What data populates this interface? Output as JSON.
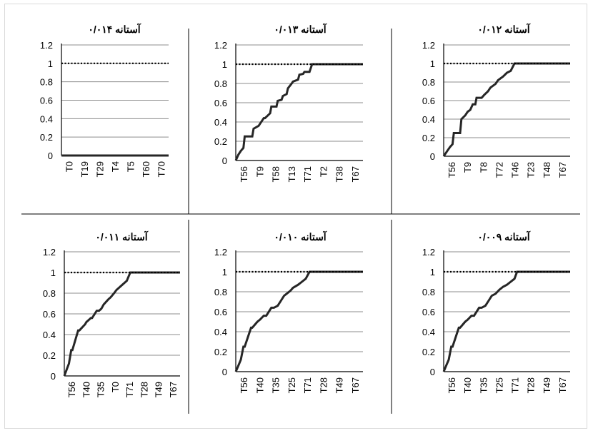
{
  "colors": {
    "grid": "#8c8c8c",
    "axis": "#000000",
    "series": "#262626",
    "threshold": "#000000",
    "divider": "#000000",
    "frame": "#d9d9d9"
  },
  "chart_data": [
    {
      "type": "line",
      "title": "آستانه ۰/۰۱۴",
      "ylim": [
        0,
        1.2
      ],
      "yticks": [
        "0",
        "0.2",
        "0.4",
        "0.6",
        "0.8",
        "1",
        "1.2"
      ],
      "categories": [
        "T0",
        "T19",
        "T29",
        "T4",
        "T5",
        "T60",
        "T70"
      ],
      "series": [
        {
          "style": "solid",
          "x": [
            0,
            1
          ],
          "y": [
            0,
            0
          ]
        },
        {
          "style": "dotted",
          "x": [
            0,
            1
          ],
          "y": [
            1,
            1
          ]
        }
      ]
    },
    {
      "type": "line",
      "title": "آستانه ۰/۰۱۳",
      "ylim": [
        0,
        1.2
      ],
      "yticks": [
        "0",
        "0.2",
        "0.4",
        "0.6",
        "0.8",
        "1",
        "1.2"
      ],
      "categories": [
        "T56",
        "T9",
        "T58",
        "T13",
        "T71",
        "T2",
        "T38",
        "T67"
      ],
      "series": [
        {
          "style": "solid",
          "x": [
            0,
            0.02,
            0.04,
            0.06,
            0.07,
            0.09,
            0.13,
            0.14,
            0.18,
            0.22,
            0.23,
            0.27,
            0.28,
            0.32,
            0.33,
            0.36,
            0.37,
            0.4,
            0.41,
            0.44,
            0.45,
            0.49,
            0.5,
            0.53,
            0.54,
            0.58,
            0.6,
            0.63,
            0.65,
            0.68,
            0.7,
            0.72,
            1
          ],
          "y": [
            0,
            0.06,
            0.1,
            0.13,
            0.25,
            0.25,
            0.25,
            0.33,
            0.36,
            0.44,
            0.44,
            0.49,
            0.56,
            0.56,
            0.62,
            0.63,
            0.67,
            0.69,
            0.75,
            0.8,
            0.82,
            0.84,
            0.89,
            0.9,
            0.92,
            0.92,
            1,
            1,
            1,
            1,
            1,
            1,
            1
          ]
        },
        {
          "style": "dotted",
          "x": [
            0,
            1
          ],
          "y": [
            1,
            1
          ]
        }
      ]
    },
    {
      "type": "line",
      "title": "آستانه ۰/۰۱۲",
      "ylim": [
        0,
        1.2
      ],
      "yticks": [
        "0",
        "0.2",
        "0.4",
        "0.6",
        "0.8",
        "1",
        "1.2"
      ],
      "categories": [
        "T56",
        "T9",
        "T8",
        "T72",
        "T46",
        "T23",
        "T48",
        "T67"
      ],
      "series": [
        {
          "style": "solid",
          "x": [
            0,
            0.03,
            0.05,
            0.07,
            0.08,
            0.13,
            0.14,
            0.17,
            0.19,
            0.21,
            0.23,
            0.25,
            0.26,
            0.3,
            0.32,
            0.35,
            0.37,
            0.41,
            0.43,
            0.47,
            0.5,
            0.53,
            0.56,
            0.58,
            0.6,
            1
          ],
          "y": [
            0,
            0.06,
            0.1,
            0.13,
            0.25,
            0.25,
            0.4,
            0.44,
            0.48,
            0.5,
            0.56,
            0.56,
            0.63,
            0.63,
            0.66,
            0.7,
            0.74,
            0.78,
            0.82,
            0.86,
            0.9,
            0.92,
            1,
            1,
            1,
            1
          ]
        },
        {
          "style": "dotted",
          "x": [
            0,
            1
          ],
          "y": [
            1,
            1
          ]
        }
      ]
    },
    {
      "type": "line",
      "title": "آستانه ۰/۰۱۱",
      "ylim": [
        0,
        1.2
      ],
      "yticks": [
        "0",
        "0.2",
        "0.4",
        "0.6",
        "0.8",
        "1",
        "1.2"
      ],
      "categories": [
        "T56",
        "T40",
        "T35",
        "T0",
        "T71",
        "T28",
        "T49",
        "T67"
      ],
      "series": [
        {
          "style": "solid",
          "x": [
            0,
            0.02,
            0.04,
            0.06,
            0.07,
            0.12,
            0.13,
            0.18,
            0.19,
            0.23,
            0.24,
            0.28,
            0.3,
            0.32,
            0.34,
            0.38,
            0.4,
            0.43,
            0.45,
            0.48,
            0.5,
            0.54,
            0.57,
            0.6,
            1
          ],
          "y": [
            0,
            0.06,
            0.12,
            0.25,
            0.25,
            0.44,
            0.44,
            0.5,
            0.52,
            0.56,
            0.56,
            0.63,
            0.63,
            0.65,
            0.69,
            0.74,
            0.76,
            0.8,
            0.83,
            0.86,
            0.88,
            0.92,
            1,
            1,
            1
          ]
        },
        {
          "style": "dotted",
          "x": [
            0,
            1
          ],
          "y": [
            1,
            1
          ]
        }
      ]
    },
    {
      "type": "line",
      "title": "آستانه ۰/۰۱۰",
      "ylim": [
        0,
        1.2
      ],
      "yticks": [
        "0",
        "0.2",
        "0.4",
        "0.6",
        "0.8",
        "1",
        "1.2"
      ],
      "categories": [
        "T56",
        "T40",
        "T35",
        "T25",
        "T71",
        "T28",
        "T49",
        "T67"
      ],
      "series": [
        {
          "style": "solid",
          "x": [
            0,
            0.02,
            0.04,
            0.06,
            0.07,
            0.12,
            0.13,
            0.17,
            0.19,
            0.22,
            0.24,
            0.28,
            0.3,
            0.33,
            0.35,
            0.38,
            0.4,
            0.43,
            0.45,
            0.49,
            0.52,
            0.55,
            0.58,
            0.6,
            1
          ],
          "y": [
            0,
            0.06,
            0.12,
            0.25,
            0.25,
            0.44,
            0.44,
            0.5,
            0.52,
            0.56,
            0.56,
            0.64,
            0.64,
            0.66,
            0.7,
            0.76,
            0.78,
            0.81,
            0.84,
            0.87,
            0.9,
            0.93,
            1,
            1,
            1
          ]
        },
        {
          "style": "dotted",
          "x": [
            0,
            1
          ],
          "y": [
            1,
            1
          ]
        }
      ]
    },
    {
      "type": "line",
      "title": "آستانه ۰/۰۰۹",
      "ylim": [
        0,
        1.2
      ],
      "yticks": [
        "0",
        "0.2",
        "0.4",
        "0.6",
        "0.8",
        "1",
        "1.2"
      ],
      "categories": [
        "T56",
        "T40",
        "T35",
        "T25",
        "T71",
        "T28",
        "T49",
        "T67"
      ],
      "series": [
        {
          "style": "solid",
          "x": [
            0,
            0.02,
            0.04,
            0.06,
            0.07,
            0.12,
            0.13,
            0.17,
            0.19,
            0.22,
            0.24,
            0.28,
            0.3,
            0.33,
            0.35,
            0.38,
            0.41,
            0.44,
            0.47,
            0.5,
            0.53,
            0.56,
            0.58,
            0.6,
            1
          ],
          "y": [
            0,
            0.06,
            0.12,
            0.25,
            0.25,
            0.44,
            0.44,
            0.5,
            0.52,
            0.56,
            0.56,
            0.64,
            0.64,
            0.66,
            0.7,
            0.76,
            0.78,
            0.82,
            0.85,
            0.87,
            0.9,
            0.93,
            1,
            1,
            1
          ]
        },
        {
          "style": "dotted",
          "x": [
            0,
            1
          ],
          "y": [
            1,
            1
          ]
        }
      ]
    }
  ]
}
